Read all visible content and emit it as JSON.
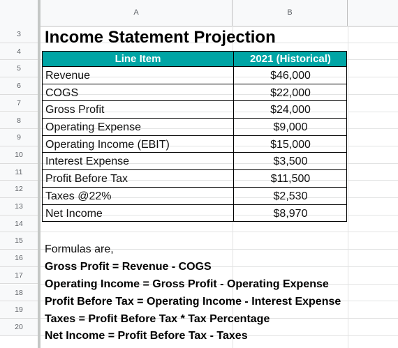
{
  "columns": [
    "A",
    "B"
  ],
  "rows": [
    "3",
    "4",
    "5",
    "6",
    "7",
    "8",
    "9",
    "10",
    "11",
    "12",
    "13",
    "14",
    "15",
    "16",
    "17",
    "18",
    "19",
    "20"
  ],
  "title": "Income Statement Projection",
  "table": {
    "header": [
      "Line Item",
      "2021 (Historical)"
    ],
    "header_color": "#00a5a5",
    "rows": [
      {
        "item": "Revenue",
        "value": "$46,000"
      },
      {
        "item": "COGS",
        "value": "$22,000"
      },
      {
        "item": "Gross Profit",
        "value": "$24,000"
      },
      {
        "item": "Operating Expense",
        "value": "$9,000"
      },
      {
        "item": "Operating Income (EBIT)",
        "value": "$15,000"
      },
      {
        "item": "Interest Expense",
        "value": "$3,500"
      },
      {
        "item": "Profit Before Tax",
        "value": "$11,500"
      },
      {
        "item": "Taxes @22%",
        "value": "$2,530"
      },
      {
        "item": "Net Income",
        "value": "$8,970"
      }
    ]
  },
  "formulas": {
    "intro": "Formulas are,",
    "lines": [
      "Gross Profit = Revenue - COGS",
      "Operating Income = Gross Profit - Operating Expense",
      "Profit Before Tax = Operating Income - Interest Expense",
      "Taxes = Profit Before Tax * Tax Percentage",
      "Net Income = Profit Before Tax - Taxes"
    ]
  }
}
